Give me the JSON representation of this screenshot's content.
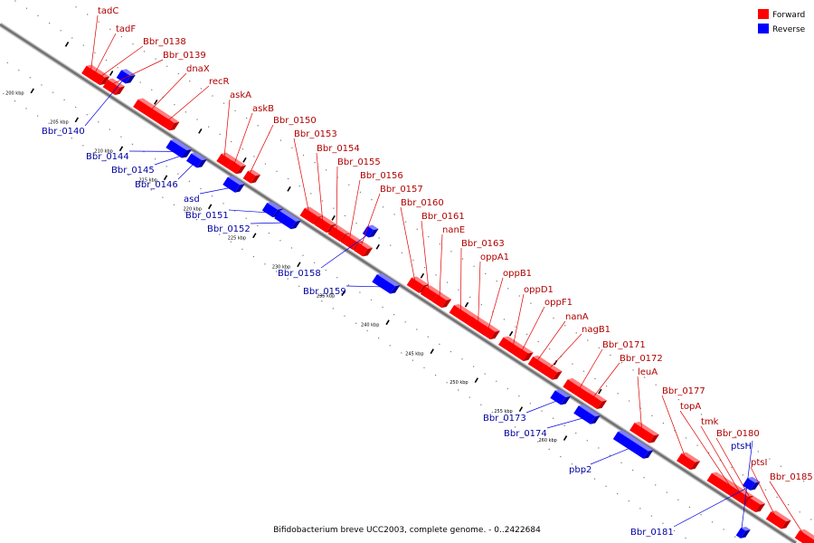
{
  "caption": "Bifidobacterium breve UCC2003, complete genome. - 0..2422684",
  "legend": {
    "forward": {
      "label": "Forward",
      "color": "#ff0000"
    },
    "reverse": {
      "label": "Reverse",
      "color": "#0000ff"
    }
  },
  "ticks": [
    "200 kbp",
    "205 kbp",
    "210 kbp",
    "215 kbp",
    "220 kbp",
    "225 kbp",
    "230 kbp",
    "235 kbp",
    "240 kbp",
    "245 kbp",
    "250 kbp",
    "255 kbp",
    "260 kbp"
  ],
  "genes": [
    {
      "name": "tadC",
      "strand": "forward"
    },
    {
      "name": "tadF",
      "strand": "forward"
    },
    {
      "name": "Bbr_0138",
      "strand": "forward"
    },
    {
      "name": "Bbr_0139",
      "strand": "forward"
    },
    {
      "name": "dnaX",
      "strand": "forward"
    },
    {
      "name": "recR",
      "strand": "forward"
    },
    {
      "name": "askA",
      "strand": "forward"
    },
    {
      "name": "askB",
      "strand": "forward"
    },
    {
      "name": "Bbr_0150",
      "strand": "forward"
    },
    {
      "name": "Bbr_0153",
      "strand": "forward"
    },
    {
      "name": "Bbr_0154",
      "strand": "forward"
    },
    {
      "name": "Bbr_0155",
      "strand": "forward"
    },
    {
      "name": "Bbr_0156",
      "strand": "forward"
    },
    {
      "name": "Bbr_0157",
      "strand": "forward"
    },
    {
      "name": "Bbr_0160",
      "strand": "forward"
    },
    {
      "name": "Bbr_0161",
      "strand": "forward"
    },
    {
      "name": "nanE",
      "strand": "forward"
    },
    {
      "name": "Bbr_0163",
      "strand": "forward"
    },
    {
      "name": "oppA1",
      "strand": "forward"
    },
    {
      "name": "oppB1",
      "strand": "forward"
    },
    {
      "name": "oppD1",
      "strand": "forward"
    },
    {
      "name": "oppF1",
      "strand": "forward"
    },
    {
      "name": "nanA",
      "strand": "forward"
    },
    {
      "name": "nagB1",
      "strand": "forward"
    },
    {
      "name": "Bbr_0171",
      "strand": "forward"
    },
    {
      "name": "Bbr_0172",
      "strand": "forward"
    },
    {
      "name": "leuA",
      "strand": "forward"
    },
    {
      "name": "Bbr_0177",
      "strand": "forward"
    },
    {
      "name": "topA",
      "strand": "forward"
    },
    {
      "name": "tmk",
      "strand": "forward"
    },
    {
      "name": "Bbr_0180",
      "strand": "forward"
    },
    {
      "name": "ptsI",
      "strand": "forward"
    },
    {
      "name": "Bbr_0185",
      "strand": "forward"
    },
    {
      "name": "ptsH",
      "strand": "reverse"
    },
    {
      "name": "Bbr_0140",
      "strand": "reverse"
    },
    {
      "name": "Bbr_0144",
      "strand": "reverse"
    },
    {
      "name": "Bbr_0145",
      "strand": "reverse"
    },
    {
      "name": "Bbr_0146",
      "strand": "reverse"
    },
    {
      "name": "asd",
      "strand": "reverse"
    },
    {
      "name": "Bbr_0151",
      "strand": "reverse"
    },
    {
      "name": "Bbr_0152",
      "strand": "reverse"
    },
    {
      "name": "Bbr_0158",
      "strand": "reverse"
    },
    {
      "name": "Bbr_0159",
      "strand": "reverse"
    },
    {
      "name": "Bbr_0173",
      "strand": "reverse"
    },
    {
      "name": "Bbr_0174",
      "strand": "reverse"
    },
    {
      "name": "pbp2",
      "strand": "reverse"
    },
    {
      "name": "Bbr_0181",
      "strand": "reverse"
    }
  ]
}
